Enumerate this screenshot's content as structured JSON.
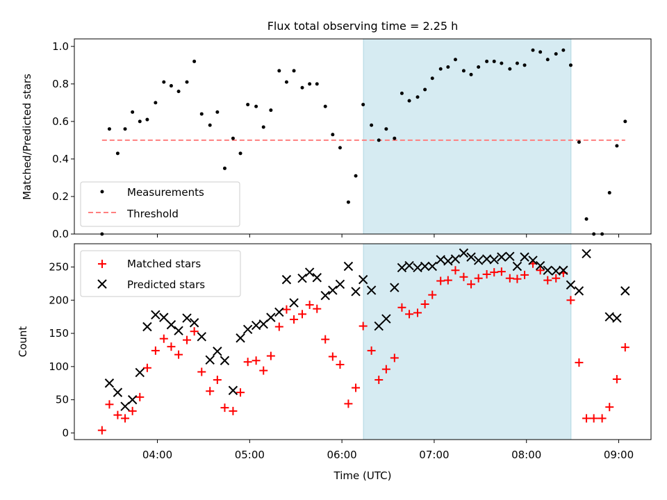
{
  "chart_data": [
    {
      "type": "scatter",
      "title": "Flux total observing time = 2.25 h",
      "ylabel": "Matched/Predicted stars",
      "ylim": [
        0,
        1.04
      ],
      "xlim": [
        3.1,
        9.35
      ],
      "yticks": [
        0.0,
        0.2,
        0.4,
        0.6,
        0.8,
        1.0
      ],
      "ytick_labels": [
        "0.0",
        "0.2",
        "0.4",
        "0.6",
        "0.8",
        "1.0"
      ],
      "shaded_region": {
        "x_start": 6.233,
        "x_end": 8.483,
        "color": "#add8e6"
      },
      "legend": {
        "placement": "lower-left",
        "entries": [
          "Measurements",
          "Threshold"
        ]
      },
      "series": [
        {
          "name": "Measurements",
          "marker": "dot",
          "color": "#000000",
          "points": [
            [
              3.4,
              0.0
            ],
            [
              3.48,
              0.56
            ],
            [
              3.57,
              0.43
            ],
            [
              3.65,
              0.56
            ],
            [
              3.73,
              0.65
            ],
            [
              3.81,
              0.6
            ],
            [
              3.89,
              0.61
            ],
            [
              3.98,
              0.7
            ],
            [
              4.07,
              0.81
            ],
            [
              4.15,
              0.79
            ],
            [
              4.23,
              0.76
            ],
            [
              4.32,
              0.81
            ],
            [
              4.4,
              0.92
            ],
            [
              4.48,
              0.64
            ],
            [
              4.57,
              0.58
            ],
            [
              4.65,
              0.65
            ],
            [
              4.73,
              0.35
            ],
            [
              4.82,
              0.51
            ],
            [
              4.9,
              0.43
            ],
            [
              4.98,
              0.69
            ],
            [
              5.07,
              0.68
            ],
            [
              5.15,
              0.57
            ],
            [
              5.23,
              0.66
            ],
            [
              5.32,
              0.87
            ],
            [
              5.4,
              0.81
            ],
            [
              5.48,
              0.87
            ],
            [
              5.57,
              0.78
            ],
            [
              5.65,
              0.8
            ],
            [
              5.73,
              0.8
            ],
            [
              5.82,
              0.68
            ],
            [
              5.9,
              0.53
            ],
            [
              5.98,
              0.46
            ],
            [
              6.07,
              0.17
            ],
            [
              6.15,
              0.31
            ],
            [
              6.23,
              0.69
            ],
            [
              6.32,
              0.58
            ],
            [
              6.4,
              0.5
            ],
            [
              6.48,
              0.56
            ],
            [
              6.57,
              0.51
            ],
            [
              6.65,
              0.75
            ],
            [
              6.73,
              0.71
            ],
            [
              6.82,
              0.73
            ],
            [
              6.9,
              0.77
            ],
            [
              6.98,
              0.83
            ],
            [
              7.07,
              0.88
            ],
            [
              7.15,
              0.89
            ],
            [
              7.23,
              0.93
            ],
            [
              7.32,
              0.87
            ],
            [
              7.4,
              0.85
            ],
            [
              7.48,
              0.89
            ],
            [
              7.57,
              0.92
            ],
            [
              7.65,
              0.92
            ],
            [
              7.73,
              0.91
            ],
            [
              7.82,
              0.88
            ],
            [
              7.9,
              0.91
            ],
            [
              7.98,
              0.9
            ],
            [
              8.07,
              0.98
            ],
            [
              8.15,
              0.97
            ],
            [
              8.23,
              0.93
            ],
            [
              8.32,
              0.96
            ],
            [
              8.4,
              0.98
            ],
            [
              8.48,
              0.9
            ],
            [
              8.57,
              0.49
            ],
            [
              8.65,
              0.08
            ],
            [
              8.73,
              0.0
            ],
            [
              8.82,
              0.0
            ],
            [
              8.9,
              0.22
            ],
            [
              8.98,
              0.47
            ],
            [
              9.07,
              0.6
            ]
          ]
        },
        {
          "name": "Threshold",
          "marker": "dashed-line",
          "color": "#ff7f7f",
          "points": [
            [
              3.4,
              0.5
            ],
            [
              9.07,
              0.5
            ]
          ]
        }
      ]
    },
    {
      "type": "scatter",
      "xlabel": "Time (UTC)",
      "ylabel": "Count",
      "ylim": [
        -10,
        285
      ],
      "xlim": [
        3.1,
        9.35
      ],
      "yticks": [
        0,
        50,
        100,
        150,
        200,
        250
      ],
      "ytick_labels": [
        "0",
        "50",
        "100",
        "150",
        "200",
        "250"
      ],
      "xticks": [
        4,
        5,
        6,
        7,
        8,
        9
      ],
      "xtick_labels": [
        "04:00",
        "05:00",
        "06:00",
        "07:00",
        "08:00",
        "09:00"
      ],
      "shaded_region": {
        "x_start": 6.233,
        "x_end": 8.483,
        "color": "#add8e6"
      },
      "legend": {
        "placement": "upper-left",
        "entries": [
          "Matched stars",
          "Predicted stars"
        ]
      },
      "series": [
        {
          "name": "Matched stars",
          "marker": "plus",
          "color": "#ff0000",
          "points": [
            [
              3.4,
              4
            ],
            [
              3.48,
              43
            ],
            [
              3.57,
              27
            ],
            [
              3.65,
              22
            ],
            [
              3.73,
              33
            ],
            [
              3.81,
              54
            ],
            [
              3.89,
              98
            ],
            [
              3.98,
              124
            ],
            [
              4.07,
              142
            ],
            [
              4.15,
              130
            ],
            [
              4.23,
              118
            ],
            [
              4.32,
              140
            ],
            [
              4.4,
              153
            ],
            [
              4.48,
              92
            ],
            [
              4.57,
              63
            ],
            [
              4.65,
              80
            ],
            [
              4.73,
              38
            ],
            [
              4.82,
              33
            ],
            [
              4.9,
              61
            ],
            [
              4.98,
              107
            ],
            [
              5.07,
              109
            ],
            [
              5.15,
              94
            ],
            [
              5.23,
              116
            ],
            [
              5.32,
              160
            ],
            [
              5.4,
              186
            ],
            [
              5.48,
              171
            ],
            [
              5.57,
              179
            ],
            [
              5.65,
              193
            ],
            [
              5.73,
              187
            ],
            [
              5.82,
              141
            ],
            [
              5.9,
              115
            ],
            [
              5.98,
              103
            ],
            [
              6.07,
              44
            ],
            [
              6.15,
              68
            ],
            [
              6.23,
              161
            ],
            [
              6.32,
              124
            ],
            [
              6.4,
              80
            ],
            [
              6.48,
              96
            ],
            [
              6.57,
              113
            ],
            [
              6.65,
              189
            ],
            [
              6.73,
              179
            ],
            [
              6.82,
              181
            ],
            [
              6.9,
              194
            ],
            [
              6.98,
              208
            ],
            [
              7.07,
              229
            ],
            [
              7.15,
              230
            ],
            [
              7.23,
              245
            ],
            [
              7.32,
              235
            ],
            [
              7.4,
              224
            ],
            [
              7.48,
              233
            ],
            [
              7.57,
              239
            ],
            [
              7.65,
              242
            ],
            [
              7.73,
              243
            ],
            [
              7.82,
              233
            ],
            [
              7.9,
              232
            ],
            [
              7.98,
              238
            ],
            [
              8.07,
              255
            ],
            [
              8.15,
              245
            ],
            [
              8.23,
              230
            ],
            [
              8.32,
              233
            ],
            [
              8.4,
              241
            ],
            [
              8.48,
              200
            ],
            [
              8.57,
              106
            ],
            [
              8.65,
              22
            ],
            [
              8.73,
              22
            ],
            [
              8.82,
              22
            ],
            [
              8.9,
              39
            ],
            [
              8.98,
              81
            ],
            [
              9.07,
              129
            ]
          ]
        },
        {
          "name": "Predicted stars",
          "marker": "x",
          "color": "#000000",
          "points": [
            [
              3.48,
              75
            ],
            [
              3.57,
              61
            ],
            [
              3.65,
              40
            ],
            [
              3.73,
              50
            ],
            [
              3.81,
              91
            ],
            [
              3.89,
              160
            ],
            [
              3.98,
              178
            ],
            [
              4.07,
              174
            ],
            [
              4.15,
              163
            ],
            [
              4.23,
              154
            ],
            [
              4.32,
              173
            ],
            [
              4.4,
              166
            ],
            [
              4.48,
              145
            ],
            [
              4.57,
              110
            ],
            [
              4.65,
              123
            ],
            [
              4.73,
              109
            ],
            [
              4.82,
              64
            ],
            [
              4.9,
              143
            ],
            [
              4.98,
              156
            ],
            [
              5.07,
              162
            ],
            [
              5.15,
              164
            ],
            [
              5.23,
              174
            ],
            [
              5.32,
              182
            ],
            [
              5.4,
              231
            ],
            [
              5.48,
              196
            ],
            [
              5.57,
              233
            ],
            [
              5.65,
              242
            ],
            [
              5.73,
              234
            ],
            [
              5.82,
              207
            ],
            [
              5.9,
              215
            ],
            [
              5.98,
              224
            ],
            [
              6.07,
              251
            ],
            [
              6.15,
              213
            ],
            [
              6.23,
              231
            ],
            [
              6.32,
              215
            ],
            [
              6.4,
              161
            ],
            [
              6.48,
              172
            ],
            [
              6.57,
              219
            ],
            [
              6.65,
              249
            ],
            [
              6.73,
              252
            ],
            [
              6.82,
              249
            ],
            [
              6.9,
              251
            ],
            [
              6.98,
              251
            ],
            [
              7.07,
              261
            ],
            [
              7.15,
              259
            ],
            [
              7.23,
              262
            ],
            [
              7.32,
              271
            ],
            [
              7.4,
              265
            ],
            [
              7.48,
              260
            ],
            [
              7.57,
              262
            ],
            [
              7.65,
              261
            ],
            [
              7.73,
              265
            ],
            [
              7.82,
              266
            ],
            [
              7.9,
              251
            ],
            [
              7.98,
              265
            ],
            [
              8.07,
              260
            ],
            [
              8.15,
              252
            ],
            [
              8.23,
              245
            ],
            [
              8.32,
              244
            ],
            [
              8.4,
              245
            ],
            [
              8.48,
              223
            ],
            [
              8.57,
              214
            ],
            [
              8.65,
              270
            ],
            [
              8.9,
              175
            ],
            [
              8.98,
              173
            ],
            [
              9.07,
              214
            ]
          ]
        }
      ]
    }
  ]
}
